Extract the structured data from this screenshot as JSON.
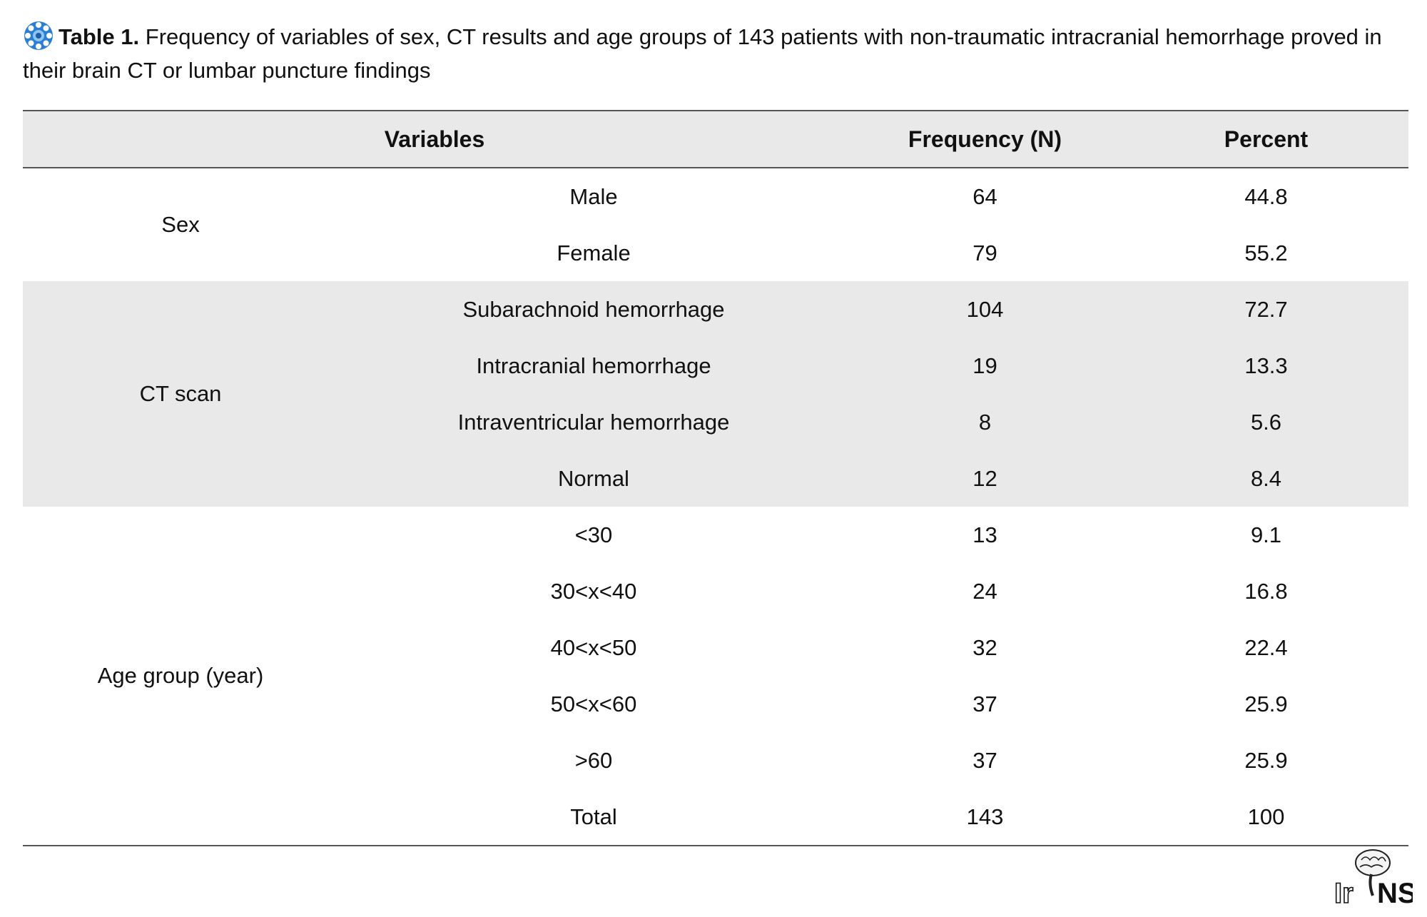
{
  "caption": {
    "lead": "Table 1.",
    "text": " Frequency of variables of sex, CT results and age groups of 143 patients with non-traumatic intracranial hemorrhage proved in their brain CT or lumbar puncture findings"
  },
  "table": {
    "headers": {
      "variables": "Variables",
      "frequency": "Frequency (N)",
      "percent": "Percent"
    },
    "groups": [
      {
        "label": "Sex",
        "rows": [
          {
            "sub": "Male",
            "freq": "64",
            "pct": "44.8"
          },
          {
            "sub": "Female",
            "freq": "79",
            "pct": "55.2"
          }
        ]
      },
      {
        "label": "CT scan",
        "rows": [
          {
            "sub": "Subarachnoid hemorrhage",
            "freq": "104",
            "pct": "72.7"
          },
          {
            "sub": "Intracranial hemorrhage",
            "freq": "19",
            "pct": "13.3"
          },
          {
            "sub": "Intraventricular hemorrhage",
            "freq": "8",
            "pct": "5.6"
          },
          {
            "sub": "Normal",
            "freq": "12",
            "pct": "8.4"
          }
        ]
      },
      {
        "label": "Age group (year)",
        "rows": [
          {
            "sub": "<30",
            "freq": "13",
            "pct": "9.1"
          },
          {
            "sub": "30<x<40",
            "freq": "24",
            "pct": "16.8"
          },
          {
            "sub": "40<x<50",
            "freq": "32",
            "pct": "22.4"
          },
          {
            "sub": "50<x<60",
            "freq": "37",
            "pct": "25.9"
          },
          {
            "sub": ">60",
            "freq": "37",
            "pct": "25.9"
          },
          {
            "sub": "Total",
            "freq": "143",
            "pct": "100"
          }
        ]
      }
    ]
  },
  "logo": {
    "text": "IrJNS",
    "icon": "brain-logo-icon"
  },
  "badge_icon": "rosette-icon",
  "colors": {
    "shade": "#e9e9e9",
    "rule": "#555555",
    "badge": "#2a7fd4"
  }
}
